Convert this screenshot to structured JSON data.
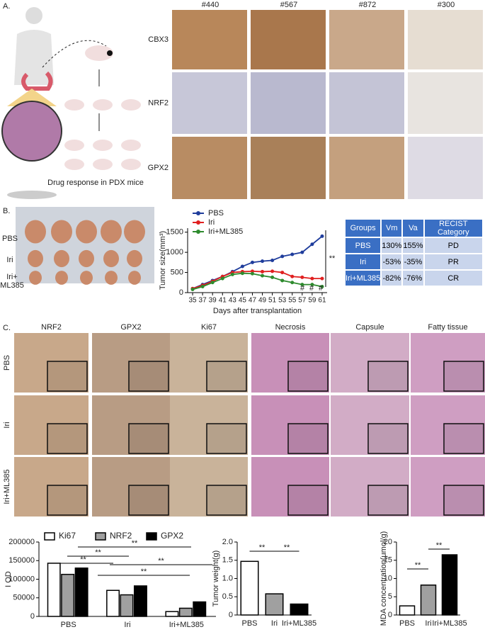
{
  "panel_a": {
    "label": "A.",
    "samples": [
      "#440",
      "#567",
      "#872",
      "#300"
    ],
    "markers": [
      "CBX3",
      "NRF2",
      "GPX2"
    ],
    "caption": "Drug response in PDX mice"
  },
  "panel_b": {
    "label": "B.",
    "photo_groups": [
      "PBS",
      "Iri",
      "Iri+ ML385"
    ]
  },
  "table": {
    "header": [
      "Groups",
      "Vm",
      "Va",
      "RECIST Category"
    ],
    "rows": [
      [
        "PBS",
        "130%",
        "155%",
        "PD"
      ],
      [
        "Iri",
        "-53%",
        "-35%",
        "PR"
      ],
      [
        "Iri+ML385",
        "-82%",
        "-76%",
        "CR"
      ]
    ]
  },
  "panel_c": {
    "label": "C.",
    "columns": [
      "NRF2",
      "GPX2",
      "Ki67",
      "Necrosis",
      "Capsule",
      "Fatty tissue"
    ],
    "rows": [
      "PBS",
      "Iri",
      "Iri+ML385"
    ]
  },
  "chart_data": [
    {
      "type": "line",
      "x_label": "Days after transplantation",
      "y_label": "Tumor size(mm³)",
      "x": [
        35,
        37,
        39,
        41,
        43,
        45,
        47,
        49,
        51,
        53,
        55,
        57,
        59,
        61
      ],
      "xlim": [
        34,
        62
      ],
      "xticks": [
        35,
        37,
        39,
        41,
        43,
        45,
        47,
        49,
        51,
        53,
        55,
        57,
        59,
        61
      ],
      "ylim": [
        0,
        1600
      ],
      "yticks": [
        0,
        500,
        1000,
        1500
      ],
      "legend": "upper left",
      "series": [
        {
          "name": "PBS",
          "color": "#1f3d9c",
          "values": [
            100,
            200,
            300,
            400,
            520,
            650,
            750,
            780,
            800,
            900,
            950,
            1000,
            1200,
            1400
          ]
        },
        {
          "name": "Iri",
          "color": "#e02020",
          "values": [
            100,
            180,
            280,
            400,
            500,
            520,
            530,
            520,
            530,
            500,
            400,
            380,
            350,
            350
          ]
        },
        {
          "name": "Iri+ML385",
          "color": "#2e8b2e",
          "values": [
            80,
            150,
            250,
            350,
            450,
            480,
            470,
            420,
            380,
            300,
            250,
            200,
            200,
            150
          ]
        }
      ],
      "annotations": [
        "**",
        "#",
        "#",
        "#"
      ]
    },
    {
      "type": "grouped_bar",
      "y_label": "I OD",
      "categories": [
        "PBS",
        "Iri",
        "Iri+ML385"
      ],
      "ylim": [
        0,
        200000
      ],
      "yticks": [
        0,
        50000,
        100000,
        150000,
        200000
      ],
      "series": [
        {
          "name": "Ki67",
          "color": "#ffffff",
          "values": [
            143000,
            70000,
            13000
          ]
        },
        {
          "name": "NRF2",
          "color": "#a0a0a0",
          "values": [
            113000,
            58000,
            22000
          ]
        },
        {
          "name": "GPX2",
          "color": "#000000",
          "values": [
            130000,
            82000,
            39000
          ]
        }
      ],
      "annotations": [
        "**",
        "**",
        "**",
        "**",
        "**"
      ]
    },
    {
      "type": "bar",
      "y_label": "Tumor weight(g)",
      "categories": [
        "PBS",
        "Iri",
        "Iri+ML385"
      ],
      "values": [
        1.47,
        0.58,
        0.3
      ],
      "colors": [
        "#ffffff",
        "#a0a0a0",
        "#000000"
      ],
      "ylim": [
        0,
        2
      ],
      "yticks": [
        0,
        0.5,
        {
          "value": 1,
          "label": "1.0"
        },
        1.5,
        {
          "value": 2,
          "label": "2.0"
        }
      ],
      "annotations": [
        "**",
        "**"
      ]
    },
    {
      "type": "bar",
      "y_label": "MDA concentration(μmol/g)",
      "categories": [
        "PBS",
        "Iri",
        "Iri+ML385"
      ],
      "values": [
        2.5,
        8.2,
        16.5
      ],
      "colors": [
        "#ffffff",
        "#a0a0a0",
        "#000000"
      ],
      "ylim": [
        0,
        20
      ],
      "yticks": [
        0,
        5,
        10,
        15,
        20
      ],
      "annotations": [
        "**",
        "**"
      ]
    }
  ]
}
